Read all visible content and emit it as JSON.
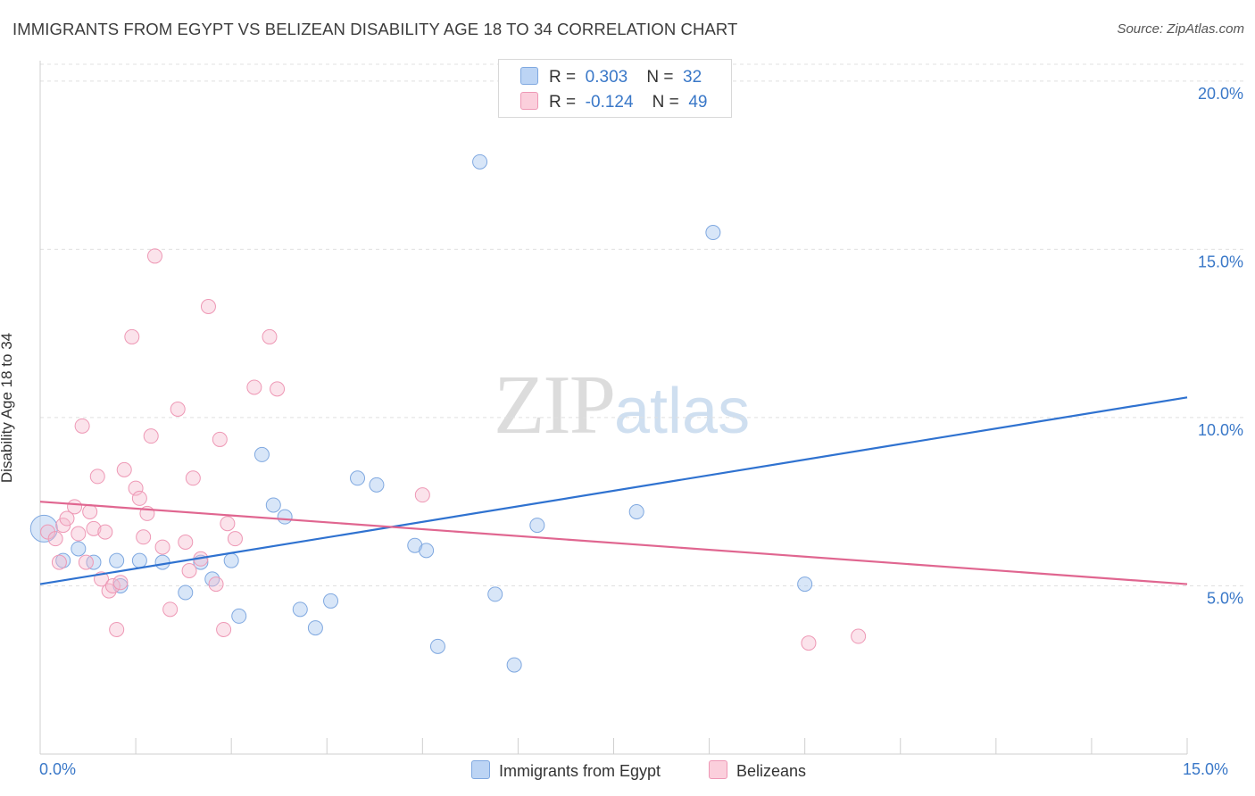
{
  "title": "IMMIGRANTS FROM EGYPT VS BELIZEAN DISABILITY AGE 18 TO 34 CORRELATION CHART",
  "source": "Source: ZipAtlas.com",
  "watermark": {
    "zip": "ZIP",
    "atlas": "atlas"
  },
  "legend": {
    "series1": {
      "r_label": "R =",
      "r_value": "0.303",
      "n_label": "N =",
      "n_value": "32"
    },
    "series2": {
      "r_label": "R =",
      "r_value": "-0.124",
      "n_label": "N =",
      "n_value": "49"
    }
  },
  "chart_data": {
    "type": "scatter",
    "title": "IMMIGRANTS FROM EGYPT VS BELIZEAN DISABILITY AGE 18 TO 34 CORRELATION CHART",
    "xlabel": "",
    "ylabel": "Disability Age 18 to 34",
    "xlim": [
      0,
      15
    ],
    "ylim": [
      0,
      20.5
    ],
    "x_tick_labels": [
      "0.0%",
      "15.0%"
    ],
    "y_ticks": [
      5,
      10,
      15,
      20
    ],
    "y_tick_labels": [
      "5.0%",
      "10.0%",
      "15.0%",
      "20.0%"
    ],
    "grid": true,
    "legend_position": "bottom-center",
    "colors": {
      "series1": "#a9c8f0",
      "series1_line": "#2f72d0",
      "series2": "#f6b8cc",
      "series2_line": "#e06690"
    },
    "series": [
      {
        "name": "Immigrants from Egypt",
        "points": [
          [
            0.05,
            6.7
          ],
          [
            0.3,
            5.75
          ],
          [
            0.5,
            6.1
          ],
          [
            0.7,
            5.7
          ],
          [
            1.0,
            5.75
          ],
          [
            1.05,
            5.0
          ],
          [
            1.3,
            5.75
          ],
          [
            1.6,
            5.7
          ],
          [
            1.9,
            4.8
          ],
          [
            2.1,
            5.7
          ],
          [
            2.25,
            5.2
          ],
          [
            2.5,
            5.75
          ],
          [
            2.6,
            4.1
          ],
          [
            2.9,
            8.9
          ],
          [
            3.05,
            7.4
          ],
          [
            3.2,
            7.05
          ],
          [
            3.4,
            4.3
          ],
          [
            3.6,
            3.75
          ],
          [
            3.8,
            4.55
          ],
          [
            4.15,
            8.2
          ],
          [
            4.4,
            8.0
          ],
          [
            4.9,
            6.2
          ],
          [
            5.05,
            6.05
          ],
          [
            5.2,
            3.2
          ],
          [
            5.75,
            17.6
          ],
          [
            5.95,
            4.75
          ],
          [
            6.2,
            2.65
          ],
          [
            6.5,
            6.8
          ],
          [
            7.8,
            7.2
          ],
          [
            8.8,
            15.5
          ],
          [
            10.0,
            5.05
          ]
        ],
        "trend": {
          "x": [
            0,
            15
          ],
          "y": [
            5.05,
            10.6
          ]
        }
      },
      {
        "name": "Belizeans",
        "points": [
          [
            0.1,
            6.6
          ],
          [
            0.2,
            6.4
          ],
          [
            0.25,
            5.7
          ],
          [
            0.3,
            6.8
          ],
          [
            0.35,
            7.0
          ],
          [
            0.45,
            7.35
          ],
          [
            0.5,
            6.55
          ],
          [
            0.55,
            9.75
          ],
          [
            0.6,
            5.7
          ],
          [
            0.65,
            7.2
          ],
          [
            0.7,
            6.7
          ],
          [
            0.75,
            8.25
          ],
          [
            0.8,
            5.2
          ],
          [
            0.85,
            6.6
          ],
          [
            0.9,
            4.85
          ],
          [
            0.95,
            5.0
          ],
          [
            1.0,
            3.7
          ],
          [
            1.05,
            5.1
          ],
          [
            1.1,
            8.45
          ],
          [
            1.2,
            12.4
          ],
          [
            1.25,
            7.9
          ],
          [
            1.3,
            7.6
          ],
          [
            1.35,
            6.45
          ],
          [
            1.4,
            7.15
          ],
          [
            1.45,
            9.45
          ],
          [
            1.5,
            14.8
          ],
          [
            1.6,
            6.15
          ],
          [
            1.7,
            4.3
          ],
          [
            1.8,
            10.25
          ],
          [
            1.9,
            6.3
          ],
          [
            1.95,
            5.45
          ],
          [
            2.0,
            8.2
          ],
          [
            2.1,
            5.8
          ],
          [
            2.2,
            13.3
          ],
          [
            2.3,
            5.05
          ],
          [
            2.35,
            9.35
          ],
          [
            2.4,
            3.7
          ],
          [
            2.45,
            6.85
          ],
          [
            2.55,
            6.4
          ],
          [
            2.8,
            10.9
          ],
          [
            3.0,
            12.4
          ],
          [
            3.1,
            10.85
          ],
          [
            5.0,
            7.7
          ],
          [
            10.05,
            3.3
          ],
          [
            10.7,
            3.5
          ]
        ],
        "trend": {
          "x": [
            0,
            15
          ],
          "y": [
            7.5,
            5.05
          ]
        }
      }
    ]
  }
}
